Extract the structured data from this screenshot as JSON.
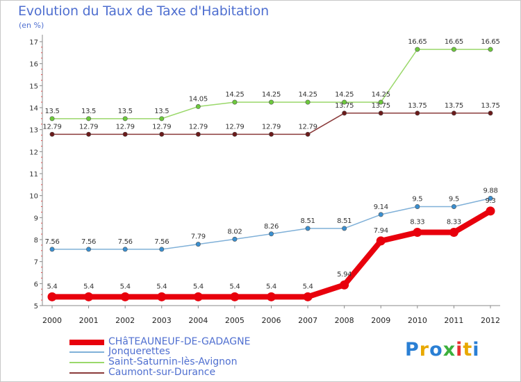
{
  "title": "Evolution du Taux de Taxe d'Habitation",
  "subtitle": "(en %)",
  "logo": {
    "text": "Proxiti",
    "letters": [
      "P",
      "r",
      "o",
      "x",
      "i",
      "t",
      "i"
    ],
    "colors": [
      "#2a7fd4",
      "#e8a800",
      "#2a7fd4",
      "#3cb03c",
      "#e83030",
      "#e8a800",
      "#2a7fd4"
    ]
  },
  "chart_data": {
    "type": "line",
    "title": "Evolution du Taux de Taxe d'Habitation",
    "ylabel": "(en %)",
    "xlabel": "",
    "ylim": [
      5,
      17
    ],
    "yticks": [
      "5",
      "6",
      "7",
      "8",
      "9",
      "10",
      "11",
      "12",
      "13",
      "14",
      "15",
      "16",
      "17"
    ],
    "grid": false,
    "legend_position": "bottom-left",
    "categories": [
      "2000",
      "2001",
      "2002",
      "2003",
      "2004",
      "2005",
      "2006",
      "2007",
      "2008",
      "2009",
      "2010",
      "2011",
      "2012"
    ],
    "series": [
      {
        "name": "CHâTEAUNEUF-DE-GADAGNE",
        "color": "#e8000c",
        "marker_color": "#e8000c",
        "values": [
          5.4,
          5.4,
          5.4,
          5.4,
          5.4,
          5.4,
          5.4,
          5.4,
          5.94,
          7.94,
          8.33,
          8.33,
          9.3
        ],
        "labels": [
          "5.4",
          "5.4",
          "5.4",
          "5.4",
          "5.4",
          "5.4",
          "5.4",
          "5.4",
          "5.94",
          "7.94",
          "8.33",
          "8.33",
          "9.3"
        ]
      },
      {
        "name": "Jonquerettes",
        "color": "#7fb0d8",
        "marker_color": "#3a8fd0",
        "values": [
          7.56,
          7.56,
          7.56,
          7.56,
          7.79,
          8.02,
          8.26,
          8.51,
          8.51,
          9.14,
          9.5,
          9.5,
          9.88
        ],
        "labels": [
          "7.56",
          "7.56",
          "7.56",
          "7.56",
          "7.79",
          "8.02",
          "8.26",
          "8.51",
          "8.51",
          "9.14",
          "9.5",
          "9.5",
          "9.88"
        ]
      },
      {
        "name": "Saint-Saturnin-lès-Avignon",
        "color": "#9ad86a",
        "marker_color": "#6cc83c",
        "values": [
          13.5,
          13.5,
          13.5,
          13.5,
          14.05,
          14.25,
          14.25,
          14.25,
          14.25,
          14.25,
          16.65,
          16.65,
          16.65
        ],
        "labels": [
          "13.5",
          "13.5",
          "13.5",
          "13.5",
          "14.05",
          "14.25",
          "14.25",
          "14.25",
          "14.25",
          "14.25",
          "16.65",
          "16.65",
          "16.65"
        ]
      },
      {
        "name": "Caumont-sur-Durance",
        "color": "#8a3a3a",
        "marker_color": "#6a1a1a",
        "values": [
          12.79,
          12.79,
          12.79,
          12.79,
          12.79,
          12.79,
          12.79,
          12.79,
          13.75,
          13.75,
          13.75,
          13.75,
          13.75
        ],
        "labels": [
          "12.79",
          "12.79",
          "12.79",
          "12.79",
          "12.79",
          "12.79",
          "12.79",
          "12.79",
          "13.75",
          "13.75",
          "13.75",
          "13.75",
          "13.75"
        ]
      }
    ]
  }
}
